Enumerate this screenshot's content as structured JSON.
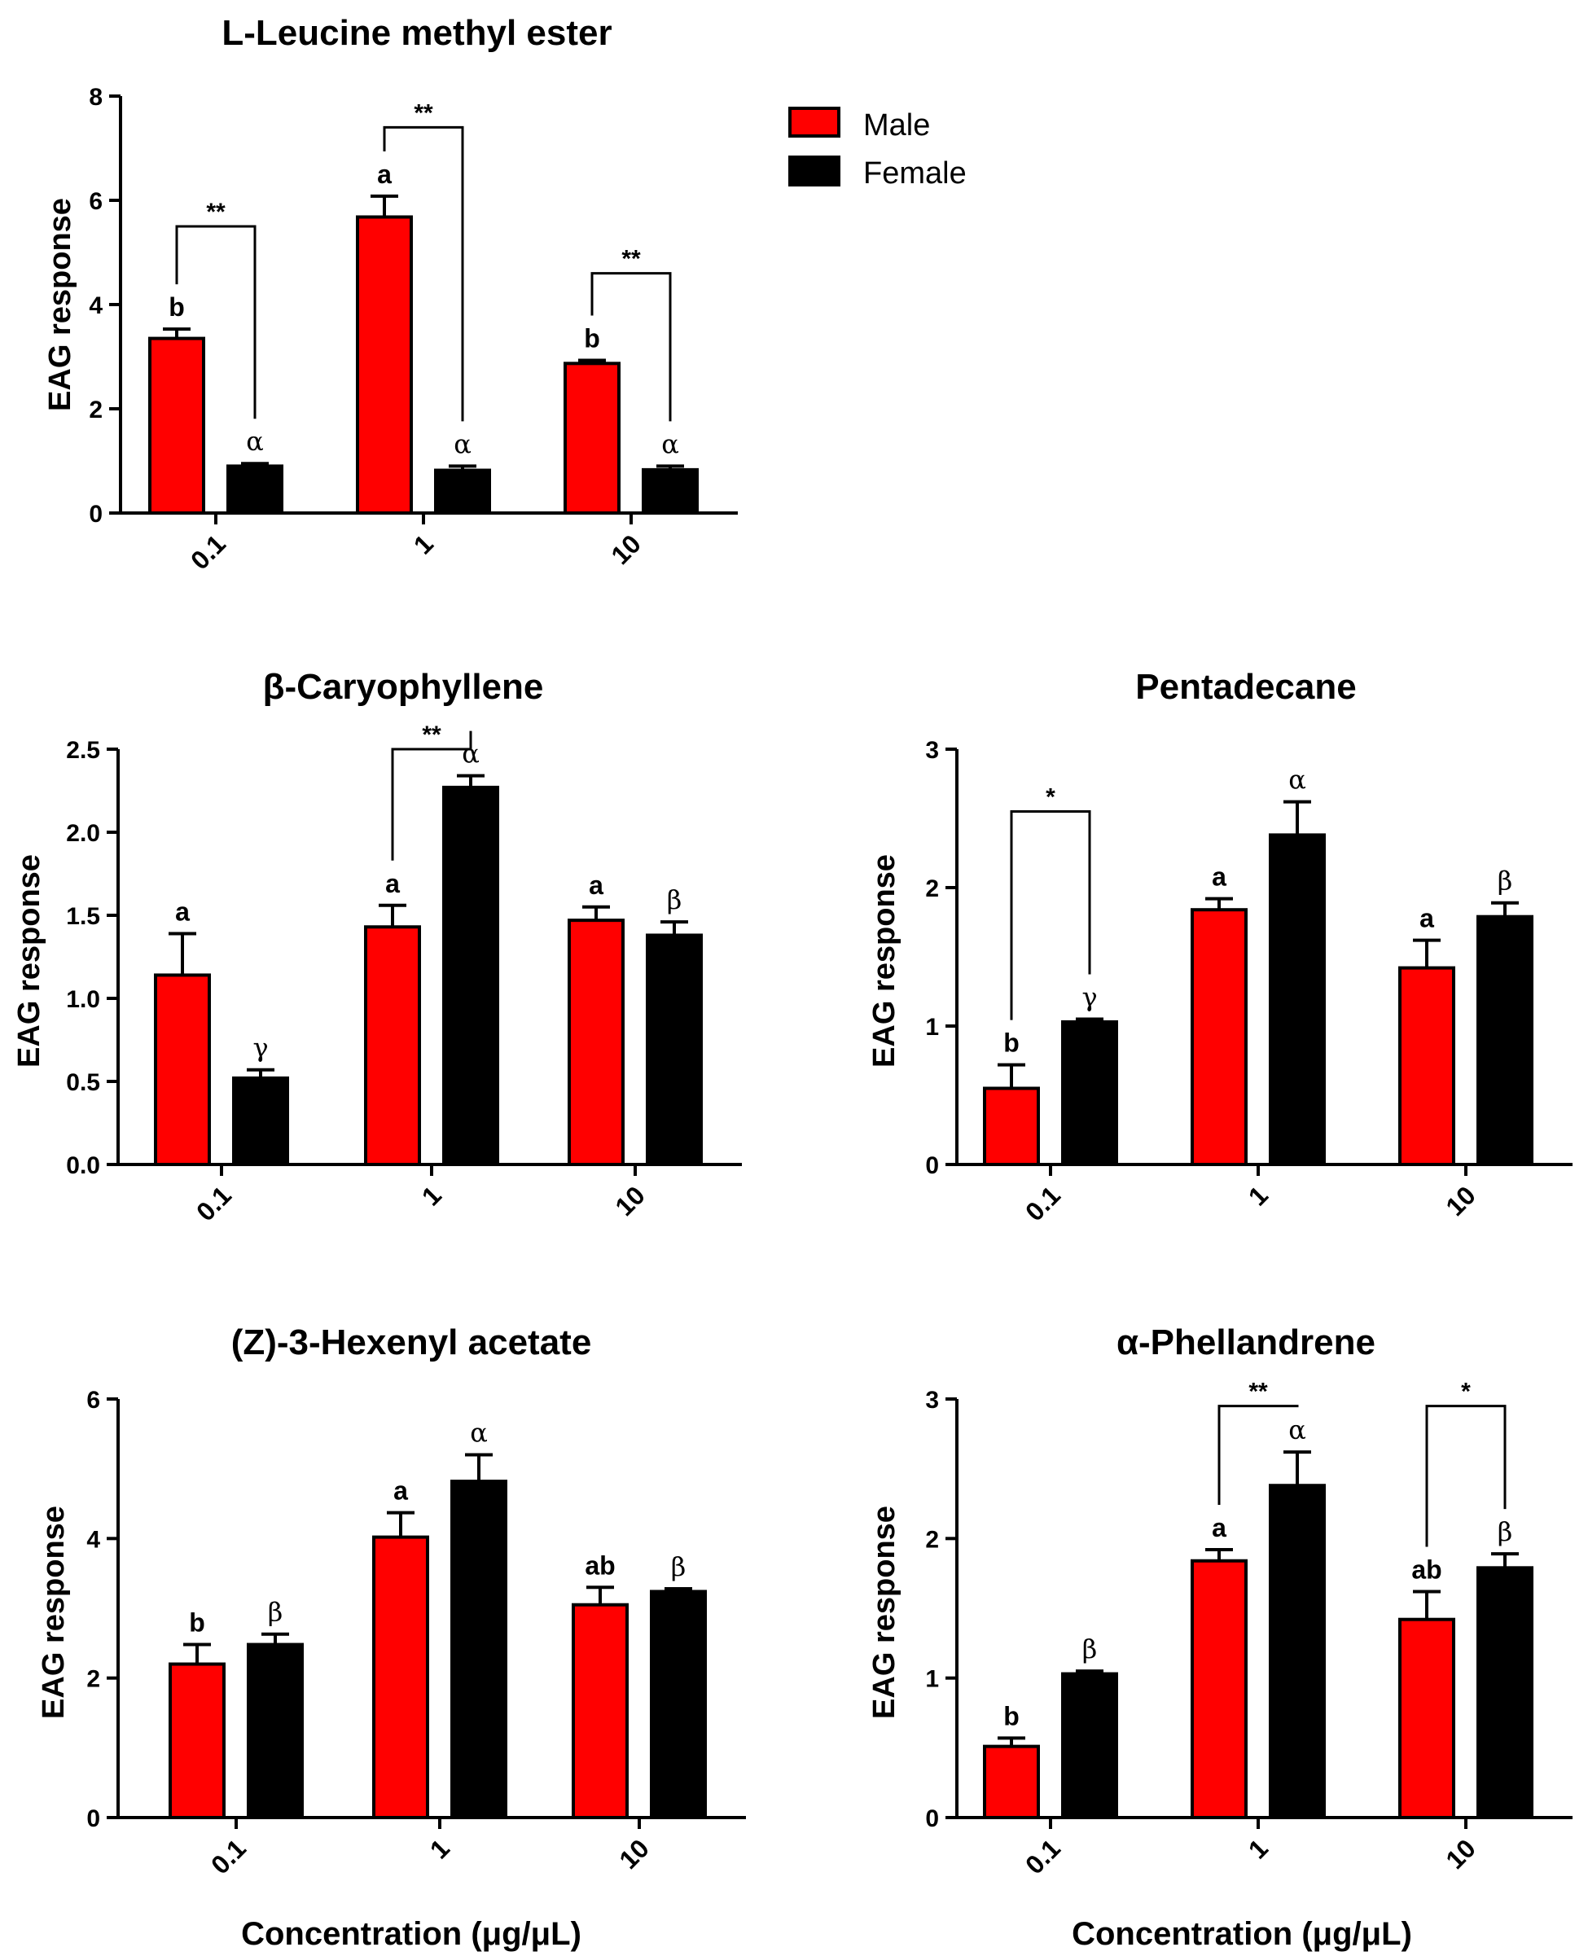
{
  "colors": {
    "male": "#ff0000",
    "female": "#000000",
    "stroke": "#000000"
  },
  "legend": [
    {
      "key": "male",
      "label": "Male"
    },
    {
      "key": "female",
      "label": "Female"
    }
  ],
  "chart_data": [
    {
      "type": "bar",
      "title": "L-Leucine methyl ester",
      "ylabel": "EAG response",
      "xlabel": "",
      "categories": [
        "0.1",
        "1",
        "10"
      ],
      "ylim": [
        0,
        8
      ],
      "yticks": [
        "0",
        "2",
        "4",
        "6",
        "8"
      ],
      "series": [
        {
          "name": "Male",
          "values": [
            3.35,
            5.68,
            2.87
          ],
          "errors": [
            0.18,
            0.4,
            0.06
          ],
          "labels": [
            "b",
            "a",
            "b"
          ]
        },
        {
          "name": "Female",
          "values": [
            0.9,
            0.82,
            0.83
          ],
          "errors": [
            0.05,
            0.08,
            0.07
          ],
          "labels": [
            "α",
            "α",
            "α"
          ]
        }
      ],
      "significance": [
        {
          "category": "0.1",
          "label": "**",
          "at": 5.5
        },
        {
          "category": "1",
          "label": "**",
          "at": 7.4
        },
        {
          "category": "10",
          "label": "**",
          "at": 4.6
        }
      ]
    },
    {
      "type": "bar",
      "title": "β-Caryophyllene",
      "ylabel": "EAG response",
      "xlabel": "",
      "categories": [
        "0.1",
        "1",
        "10"
      ],
      "ylim": [
        0,
        2.5
      ],
      "yticks": [
        "0.0",
        "0.5",
        "1.0",
        "1.5",
        "2.0",
        "2.5"
      ],
      "series": [
        {
          "name": "Male",
          "values": [
            1.14,
            1.43,
            1.47
          ],
          "errors": [
            0.25,
            0.13,
            0.08
          ],
          "labels": [
            "a",
            "a",
            "a"
          ]
        },
        {
          "name": "Female",
          "values": [
            0.52,
            2.27,
            1.38
          ],
          "errors": [
            0.05,
            0.07,
            0.08
          ],
          "labels": [
            "γ",
            "α",
            "β"
          ]
        }
      ],
      "significance": [
        {
          "category": "1",
          "label": "**",
          "at": 2.5
        }
      ]
    },
    {
      "type": "bar",
      "title": "Pentadecane",
      "ylabel": "EAG response",
      "xlabel": "",
      "categories": [
        "0.1",
        "1",
        "10"
      ],
      "ylim": [
        0,
        3
      ],
      "yticks": [
        "0",
        "1",
        "2",
        "3"
      ],
      "series": [
        {
          "name": "Male",
          "values": [
            0.55,
            1.84,
            1.42
          ],
          "errors": [
            0.17,
            0.08,
            0.2
          ],
          "labels": [
            "b",
            "a",
            "a"
          ]
        },
        {
          "name": "Female",
          "values": [
            1.03,
            2.38,
            1.79
          ],
          "errors": [
            0.02,
            0.24,
            0.1
          ],
          "labels": [
            "γ",
            "α",
            "β"
          ]
        }
      ],
      "significance": [
        {
          "category": "0.1",
          "label": "*",
          "at": 2.55
        }
      ]
    },
    {
      "type": "bar",
      "title": "(Z)-3-Hexenyl acetate",
      "ylabel": "EAG response",
      "xlabel": "Concentration (μg/μL)",
      "categories": [
        "0.1",
        "1",
        "10"
      ],
      "ylim": [
        0,
        6
      ],
      "yticks": [
        "0",
        "2",
        "4",
        "6"
      ],
      "series": [
        {
          "name": "Male",
          "values": [
            2.2,
            4.02,
            3.05
          ],
          "errors": [
            0.28,
            0.35,
            0.25
          ],
          "labels": [
            "b",
            "a",
            "ab"
          ]
        },
        {
          "name": "Female",
          "values": [
            2.48,
            4.82,
            3.24
          ],
          "errors": [
            0.15,
            0.38,
            0.04
          ],
          "labels": [
            "β",
            "α",
            "β"
          ]
        }
      ],
      "significance": []
    },
    {
      "type": "bar",
      "title": "α-Phellandrene",
      "ylabel": "EAG response",
      "xlabel": "Concentration (μg/μL)",
      "categories": [
        "0.1",
        "1",
        "10"
      ],
      "ylim": [
        0,
        3
      ],
      "yticks": [
        "0",
        "1",
        "2",
        "3"
      ],
      "series": [
        {
          "name": "Male",
          "values": [
            0.51,
            1.84,
            1.42
          ],
          "errors": [
            0.06,
            0.08,
            0.2
          ],
          "labels": [
            "b",
            "a",
            "ab"
          ]
        },
        {
          "name": "Female",
          "values": [
            1.03,
            2.38,
            1.79
          ],
          "errors": [
            0.02,
            0.24,
            0.1
          ],
          "labels": [
            "β",
            "α",
            "β"
          ]
        }
      ],
      "significance": [
        {
          "category": "1",
          "label": "**",
          "at": 2.95
        },
        {
          "category": "10",
          "label": "*",
          "at": 2.95
        }
      ]
    }
  ]
}
